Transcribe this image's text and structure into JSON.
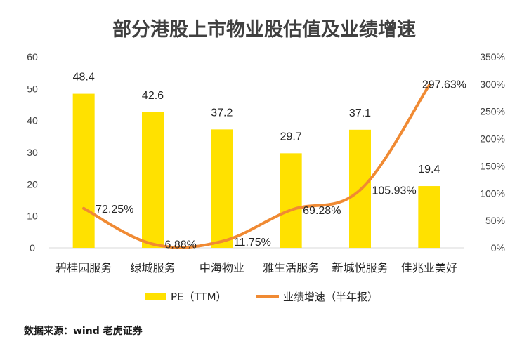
{
  "chart_data": {
    "type": "bar+line",
    "title": "部分港股上市物业股估值及业绩增速",
    "categories": [
      "碧桂园服务",
      "绿城服务",
      "中海物业",
      "雅生活服务",
      "新城悦服务",
      "佳兆业美好"
    ],
    "series": [
      {
        "name": "PE（TTM）",
        "type": "bar",
        "axis": "left",
        "values": [
          48.4,
          42.6,
          37.2,
          29.7,
          37.1,
          19.4
        ],
        "labels": [
          "48.4",
          "42.6",
          "37.2",
          "29.7",
          "37.1",
          "19.4"
        ],
        "color": "#FFE100"
      },
      {
        "name": "业绩增速（半年报）",
        "type": "line",
        "axis": "right",
        "values": [
          72.25,
          6.88,
          11.75,
          69.28,
          105.93,
          297.63
        ],
        "labels": [
          "72.25%",
          "6.88%",
          "11.75%",
          "69.28%",
          "105.93%",
          "297.63%"
        ],
        "color": "#F08A33"
      }
    ],
    "y_left": {
      "ylim": [
        0,
        60
      ],
      "ticks": [
        "0",
        "10",
        "20",
        "30",
        "40",
        "50",
        "60"
      ]
    },
    "y_right": {
      "ylim": [
        0,
        350
      ],
      "ticks": [
        "0%",
        "50%",
        "100%",
        "150%",
        "200%",
        "250%",
        "300%",
        "350%"
      ]
    },
    "legend_position": "bottom",
    "grid": false
  },
  "source_text": "数据来源：wind 老虎证券"
}
